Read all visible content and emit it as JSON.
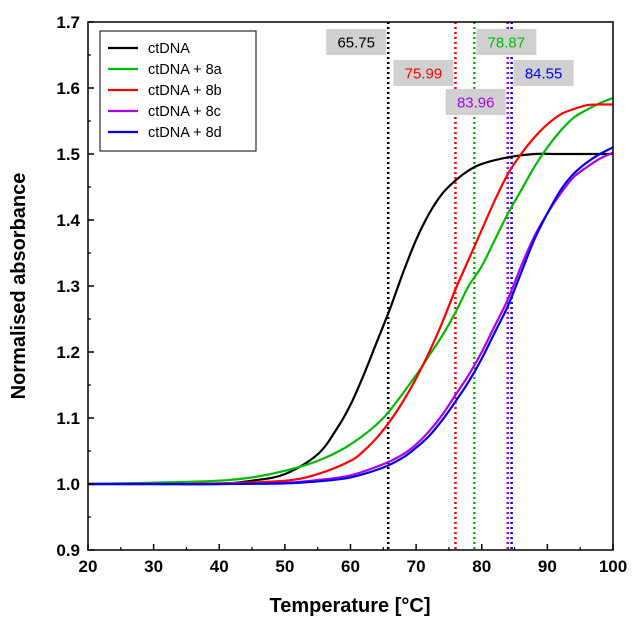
{
  "chart_data": {
    "type": "line",
    "xlabel": "Temperature [°C]",
    "ylabel": "Normalised absorbance",
    "xlim": [
      20,
      100
    ],
    "ylim": [
      0.9,
      1.7
    ],
    "x_ticks": [
      20,
      30,
      40,
      50,
      60,
      70,
      80,
      90,
      100
    ],
    "y_ticks": [
      0.9,
      1.0,
      1.1,
      1.2,
      1.3,
      1.4,
      1.5,
      1.6,
      1.7
    ],
    "x_tick_labels": [
      "20",
      "30",
      "40",
      "50",
      "60",
      "70",
      "80",
      "90",
      "100"
    ],
    "y_tick_labels": [
      "0.9",
      "1.0",
      "1.1",
      "1.2",
      "1.3",
      "1.4",
      "1.5",
      "1.6",
      "1.7"
    ],
    "legend_position": "top-left",
    "grid": false,
    "series": [
      {
        "name": "ctDNA",
        "color": "#000000",
        "tm": 65.75,
        "tm_label": "65.75",
        "x": [
          20,
          30,
          40,
          45,
          50,
          55,
          58,
          60,
          62,
          64,
          66,
          68,
          70,
          72,
          74,
          76,
          78,
          80,
          84,
          88,
          92,
          100
        ],
        "y": [
          1.0,
          1.0,
          1.0,
          1.005,
          1.015,
          1.045,
          1.085,
          1.12,
          1.165,
          1.215,
          1.265,
          1.32,
          1.37,
          1.41,
          1.44,
          1.46,
          1.475,
          1.485,
          1.495,
          1.5,
          1.5,
          1.5
        ]
      },
      {
        "name": "ctDNA + 8a",
        "color": "#00bb00",
        "tm": 78.87,
        "tm_label": "78.87",
        "x": [
          20,
          30,
          40,
          45,
          50,
          55,
          60,
          65,
          70,
          72,
          74,
          76,
          78,
          80,
          82,
          84,
          86,
          88,
          90,
          92,
          94,
          96,
          98,
          100
        ],
        "y": [
          1.0,
          1.002,
          1.005,
          1.01,
          1.02,
          1.035,
          1.06,
          1.1,
          1.165,
          1.195,
          1.225,
          1.26,
          1.3,
          1.33,
          1.37,
          1.41,
          1.445,
          1.48,
          1.51,
          1.535,
          1.555,
          1.567,
          1.577,
          1.585
        ]
      },
      {
        "name": "ctDNA + 8b",
        "color": "#ff0000",
        "tm": 75.99,
        "tm_label": "75.99",
        "x": [
          20,
          30,
          40,
          50,
          55,
          60,
          62,
          64,
          66,
          68,
          70,
          72,
          74,
          76,
          78,
          80,
          82,
          84,
          86,
          88,
          90,
          92,
          94,
          96,
          98,
          100
        ],
        "y": [
          1.0,
          1.0,
          1.001,
          1.005,
          1.015,
          1.035,
          1.05,
          1.07,
          1.095,
          1.125,
          1.16,
          1.2,
          1.245,
          1.295,
          1.34,
          1.385,
          1.43,
          1.47,
          1.5,
          1.525,
          1.545,
          1.56,
          1.568,
          1.574,
          1.575,
          1.575
        ]
      },
      {
        "name": "ctDNA + 8c",
        "color": "#aa00ee",
        "tm": 83.96,
        "tm_label": "83.96",
        "x": [
          20,
          30,
          40,
          50,
          55,
          60,
          65,
          68,
          70,
          72,
          74,
          76,
          78,
          80,
          82,
          84,
          86,
          88,
          90,
          92,
          94,
          96,
          98,
          100
        ],
        "y": [
          1.0,
          1.0,
          1.0,
          1.002,
          1.006,
          1.013,
          1.03,
          1.045,
          1.06,
          1.08,
          1.105,
          1.135,
          1.165,
          1.2,
          1.24,
          1.28,
          1.33,
          1.375,
          1.41,
          1.44,
          1.465,
          1.48,
          1.493,
          1.502
        ]
      },
      {
        "name": "ctDNA + 8d",
        "color": "#0000ee",
        "tm": 84.55,
        "tm_label": "84.55",
        "x": [
          20,
          30,
          40,
          50,
          55,
          60,
          65,
          68,
          70,
          72,
          74,
          76,
          78,
          80,
          82,
          84,
          86,
          88,
          90,
          92,
          94,
          96,
          98,
          100
        ],
        "y": [
          1.0,
          1.0,
          1.0,
          1.001,
          1.004,
          1.01,
          1.025,
          1.04,
          1.055,
          1.073,
          1.097,
          1.125,
          1.155,
          1.19,
          1.23,
          1.27,
          1.32,
          1.37,
          1.41,
          1.445,
          1.47,
          1.487,
          1.5,
          1.51
        ]
      }
    ]
  }
}
